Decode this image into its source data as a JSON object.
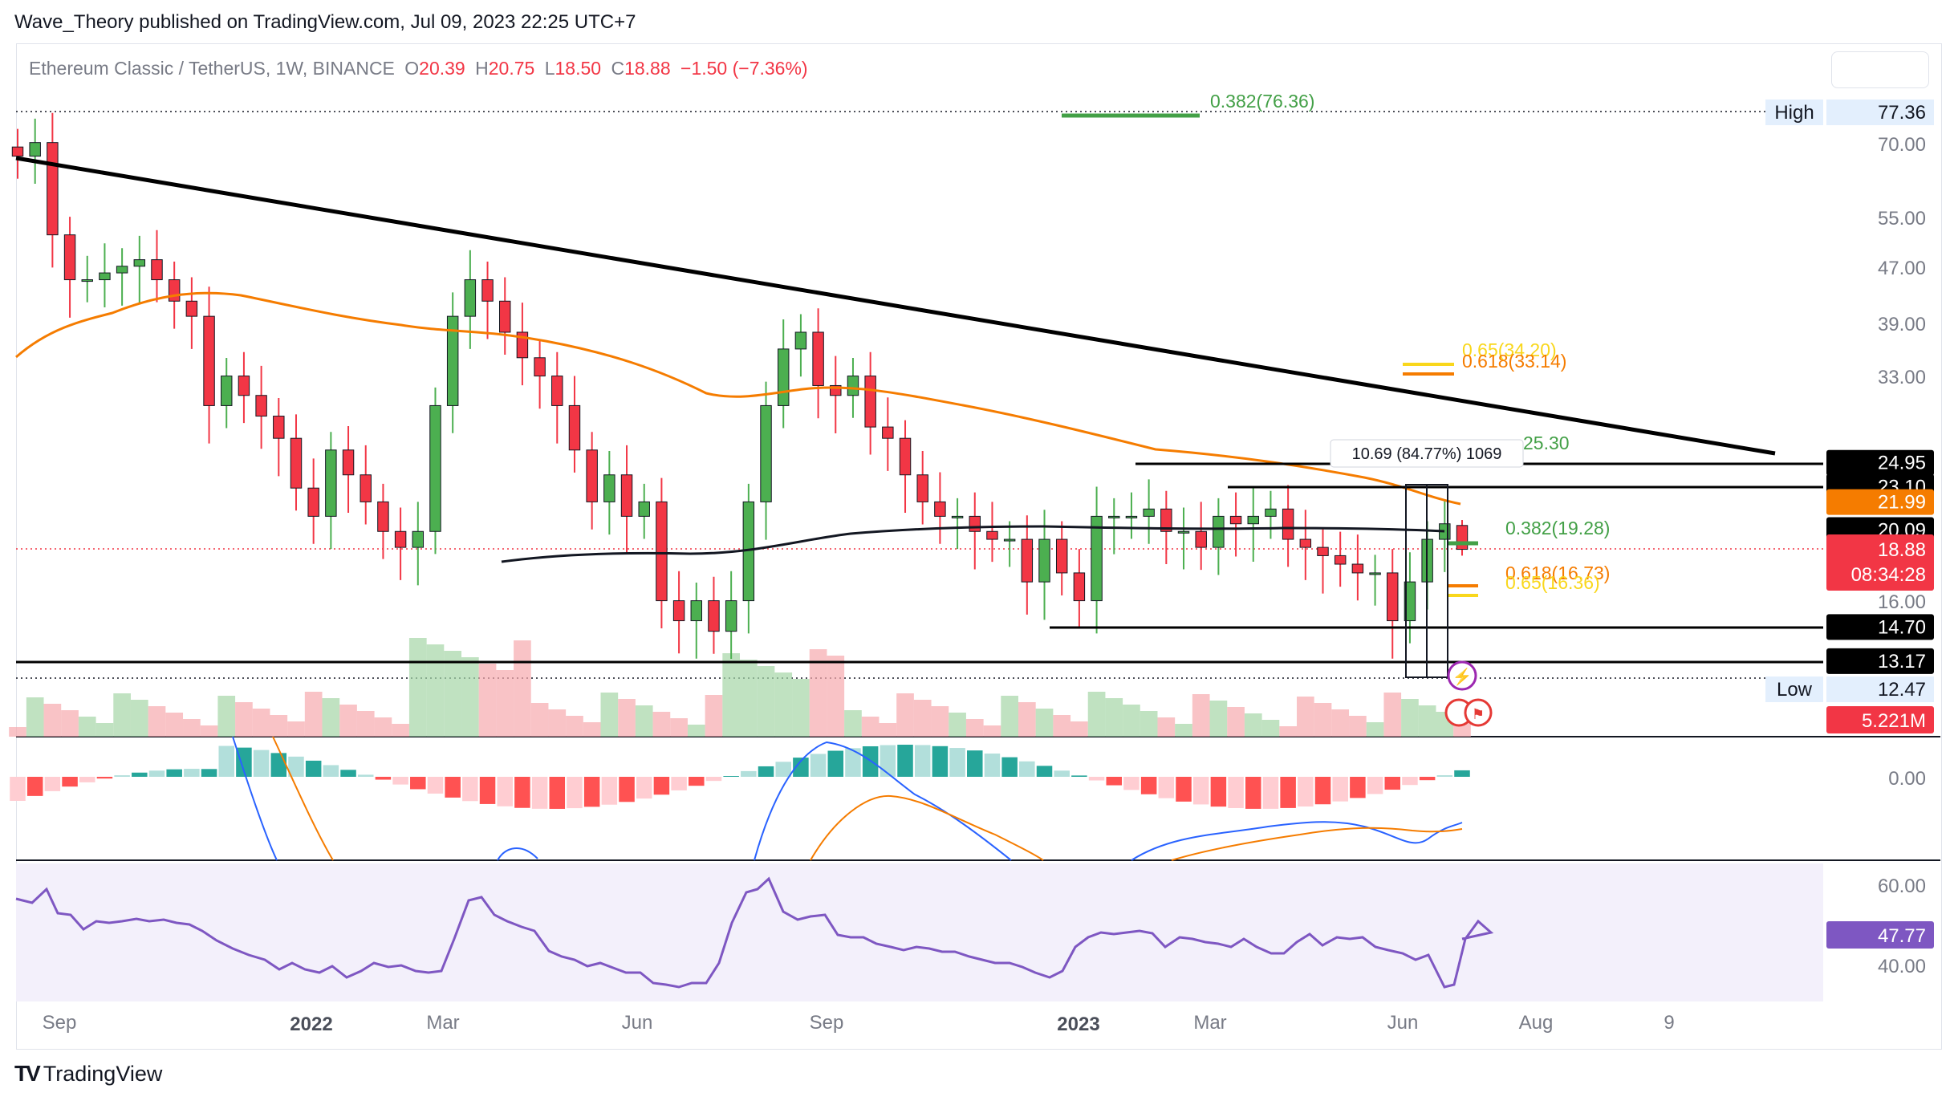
{
  "header": {
    "publisher_line": "Wave_Theory published on TradingView.com, Jul 09, 2023 22:25 UTC+7"
  },
  "symbol": {
    "name": "Ethereum Classic / TetherUS, 1W, BINANCE",
    "o_label": "O",
    "o": "20.39",
    "h_label": "H",
    "h": "20.75",
    "l_label": "L",
    "l": "18.50",
    "c_label": "C",
    "c": "18.88",
    "change": "−1.50 (−7.36%)"
  },
  "price_axis": {
    "ticks": [
      "70.00",
      "55.00",
      "47.00",
      "39.00",
      "33.00",
      "16.00",
      "0.00"
    ],
    "high_label": "High",
    "high_value": "77.36",
    "low_label": "Low",
    "low_value": "12.47",
    "boxes": [
      {
        "value": "24.95",
        "bg": "#000000"
      },
      {
        "value": "23.10",
        "bg": "#000000"
      },
      {
        "value": "21.99",
        "bg": "#f57c00"
      },
      {
        "value": "20.09",
        "bg": "#000000"
      },
      {
        "value": "14.70",
        "bg": "#000000"
      },
      {
        "value": "13.17",
        "bg": "#000000"
      }
    ],
    "last_price": "18.88",
    "countdown": "08:34:28",
    "volume_label": "5.221M",
    "rsi_ticks": [
      "60.00",
      "40.00"
    ],
    "rsi_value": "47.77"
  },
  "fib_labels": {
    "top_green": "0.382(76.36)",
    "yellow_065_upper": "0.65(34.20)",
    "yellow_0618_upper": "0.618(33.14)",
    "green_25": "25.30",
    "green_0382": "0.382(19.28)",
    "orange_0618_lower": "0.618(16.73)",
    "yellow_065_lower": "0.65(16.36)"
  },
  "measure_label": "10.69 (84.77%) 1069",
  "time_axis": {
    "labels": [
      "Sep",
      "2022",
      "Mar",
      "Jun",
      "Sep",
      "2023",
      "Mar",
      "Jun",
      "Aug",
      "9"
    ]
  },
  "footer": {
    "brand": "TradingView",
    "brand_mark": "TV"
  },
  "colors": {
    "up": "#26a69a",
    "up_candle": "#4caf50",
    "down": "#f23645",
    "ema": "#f57c00",
    "trendline": "#000000",
    "rsi": "#7e57c2",
    "rsi_bg": "#f3f0fb"
  },
  "chart_data": {
    "type": "candlestick",
    "timeframe": "1W",
    "y_scale": "log",
    "ohlc_last": {
      "open": 20.39,
      "high": 20.75,
      "low": 18.5,
      "close": 18.88
    },
    "closes_approx": [
      67,
      70,
      52,
      45,
      45,
      46,
      47,
      48,
      45,
      42,
      40,
      30,
      33,
      31,
      29,
      27,
      23,
      21,
      26,
      24,
      22,
      20,
      19,
      20,
      30,
      40,
      45,
      42,
      38,
      35,
      33,
      30,
      26,
      22,
      24,
      21,
      22,
      16,
      15,
      16,
      14.5,
      16,
      22,
      30,
      36,
      38,
      32,
      31,
      33,
      28,
      27,
      24,
      22,
      21,
      21,
      20,
      19.5,
      19.5,
      17,
      19.5,
      17.5,
      16,
      21,
      21,
      21,
      21.5,
      20,
      20,
      19,
      21,
      20.5,
      21,
      21.5,
      19.5,
      19,
      18.5,
      18,
      17.5,
      17.5,
      15,
      17,
      19.5,
      20.5,
      18.88
    ],
    "levels": [
      77.36,
      24.95,
      23.1,
      21.99,
      20.09,
      14.7,
      13.17,
      12.47
    ],
    "rsi_last": 47.77,
    "volume_last": "5.221M"
  }
}
